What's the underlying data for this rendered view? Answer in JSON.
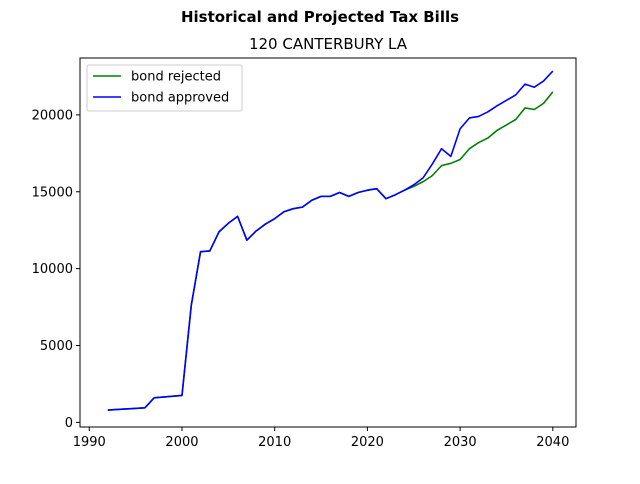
{
  "chart_data": {
    "type": "line",
    "suptitle": "Historical and Projected Tax Bills",
    "title": "120 CANTERBURY LA",
    "xlabel": "",
    "ylabel": "",
    "xlim": [
      1989,
      2042.5
    ],
    "ylim": [
      -300,
      23700
    ],
    "xticks": [
      1990,
      2000,
      2010,
      2020,
      2030,
      2040
    ],
    "yticks": [
      0,
      5000,
      10000,
      15000,
      20000
    ],
    "grid": false,
    "legend_position": "top-left",
    "series": [
      {
        "name": "bond rejected",
        "color": "#008000",
        "x": [
          1992,
          1996,
          1997,
          2000,
          2001,
          2002,
          2003,
          2004,
          2005,
          2006,
          2007,
          2008,
          2009,
          2010,
          2011,
          2012,
          2013,
          2014,
          2015,
          2016,
          2017,
          2018,
          2019,
          2020,
          2021,
          2022,
          2023,
          2024,
          2025,
          2026,
          2027,
          2028,
          2029,
          2030,
          2031,
          2032,
          2033,
          2034,
          2035,
          2036,
          2037,
          2038,
          2039,
          2040
        ],
        "values": [
          800,
          950,
          1600,
          1750,
          7600,
          11100,
          11150,
          12400,
          12950,
          13400,
          11850,
          12450,
          12900,
          13250,
          13700,
          13900,
          14000,
          14450,
          14700,
          14700,
          14950,
          14700,
          14950,
          15100,
          15200,
          14550,
          14800,
          15100,
          15350,
          15650,
          16050,
          16700,
          16850,
          17100,
          17800,
          18200,
          18500,
          19000,
          19350,
          19700,
          20450,
          20350,
          20750,
          21500
        ]
      },
      {
        "name": "bond approved",
        "color": "#0000ff",
        "x": [
          1992,
          1996,
          1997,
          2000,
          2001,
          2002,
          2003,
          2004,
          2005,
          2006,
          2007,
          2008,
          2009,
          2010,
          2011,
          2012,
          2013,
          2014,
          2015,
          2016,
          2017,
          2018,
          2019,
          2020,
          2021,
          2022,
          2023,
          2024,
          2025,
          2026,
          2027,
          2028,
          2029,
          2030,
          2031,
          2032,
          2033,
          2034,
          2035,
          2036,
          2037,
          2038,
          2039,
          2040
        ],
        "values": [
          800,
          950,
          1600,
          1750,
          7600,
          11100,
          11150,
          12400,
          12950,
          13400,
          11850,
          12450,
          12900,
          13250,
          13700,
          13900,
          14000,
          14450,
          14700,
          14700,
          14950,
          14700,
          14950,
          15100,
          15200,
          14550,
          14800,
          15100,
          15450,
          15900,
          16800,
          17800,
          17300,
          19100,
          19800,
          19900,
          20200,
          20600,
          20950,
          21300,
          22000,
          21800,
          22200,
          22850
        ]
      }
    ]
  }
}
